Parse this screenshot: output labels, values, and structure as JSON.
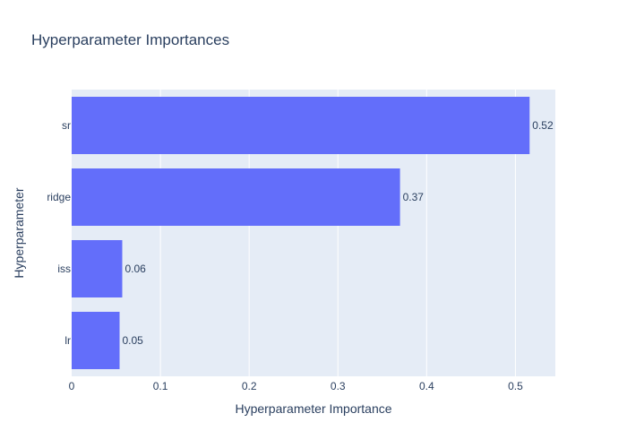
{
  "chart_data": {
    "type": "bar",
    "orientation": "horizontal",
    "title": "Hyperparameter Importances",
    "xlabel": "Hyperparameter Importance",
    "ylabel": "Hyperparameter",
    "categories": [
      "lr",
      "iss",
      "ridge",
      "sr"
    ],
    "values": [
      0.054,
      0.057,
      0.37,
      0.516
    ],
    "value_labels": [
      "0.05",
      "0.06",
      "0.37",
      "0.52"
    ],
    "xlim": [
      0,
      0.545
    ],
    "xticks": [
      0,
      0.1,
      0.2,
      0.3,
      0.4,
      0.5
    ],
    "xtick_labels": [
      "0",
      "0.1",
      "0.2",
      "0.3",
      "0.4",
      "0.5"
    ],
    "grid": true,
    "colors": {
      "bar": "#636efa",
      "plot_background": "#e5ecf6",
      "grid": "#ffffff",
      "text": "#2a3f5f"
    }
  }
}
